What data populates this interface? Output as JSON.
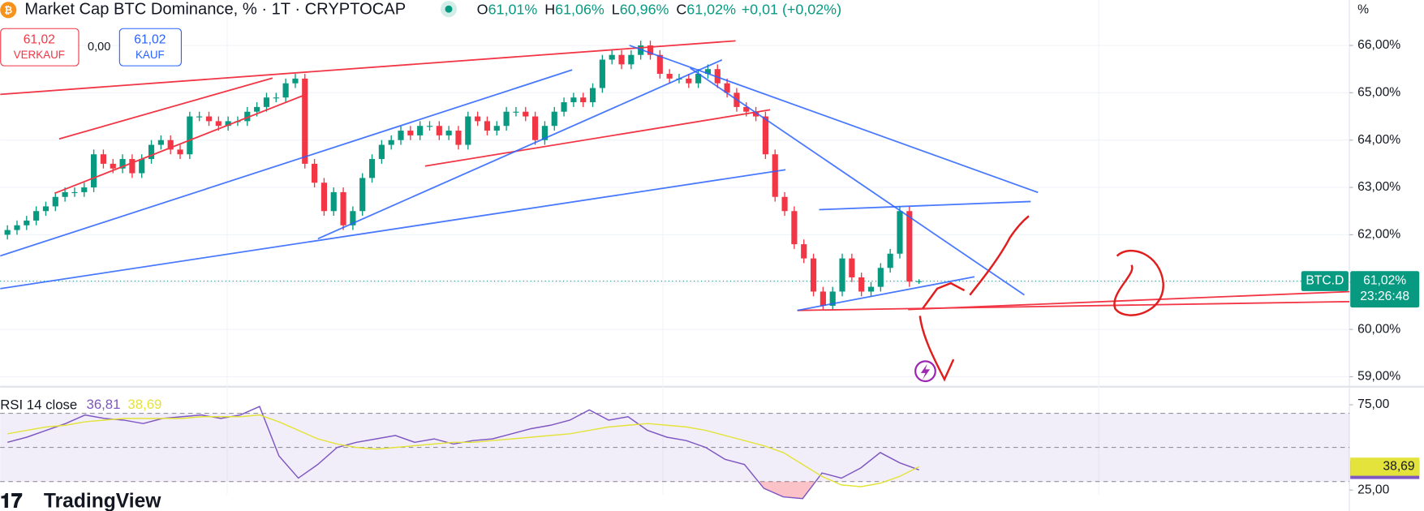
{
  "header": {
    "title": "Market Cap BTC Dominance, % · 1T · CRYPTOCAP",
    "ohlc": [
      {
        "key": "O",
        "text": "61,01%"
      },
      {
        "key": "H",
        "text": "61,06%"
      },
      {
        "key": "L",
        "text": "60,96%"
      },
      {
        "key": "C",
        "text": "61,02%"
      }
    ],
    "change": "+0,01 (+0,02%)",
    "sell": {
      "price": "61,02",
      "label": "VERKAUF"
    },
    "spread": "0,00",
    "buy": {
      "price": "61,02",
      "label": "KAUF"
    },
    "unit": "%",
    "symbol": "BTC.D",
    "countdown": "23:26:48",
    "logo": "TradingView"
  },
  "chart_data": [
    {
      "type": "candlestick",
      "up_color": "#089981",
      "down_color": "#f23645",
      "open": [
        62.0,
        62.1,
        62.2,
        62.3,
        62.5,
        62.6,
        62.8,
        62.9,
        62.9,
        63.0,
        63.7,
        63.5,
        63.4,
        63.6,
        63.3,
        63.6,
        63.9,
        64.0,
        63.8,
        63.7,
        64.5,
        64.5,
        64.4,
        64.3,
        64.4,
        64.4,
        64.6,
        64.7,
        64.9,
        64.9,
        65.2,
        65.3,
        63.5,
        63.1,
        62.5,
        62.9,
        62.2,
        62.5,
        63.2,
        63.6,
        63.9,
        64.0,
        64.2,
        64.1,
        64.3,
        64.3,
        64.1,
        64.2,
        63.9,
        64.5,
        64.4,
        64.2,
        64.3,
        64.6,
        64.6,
        64.5,
        64.0,
        64.3,
        64.6,
        64.8,
        64.9,
        64.8,
        65.1,
        65.7,
        65.8,
        65.6,
        65.8,
        66.0,
        65.8,
        65.4,
        65.3,
        65.3,
        65.2,
        65.4,
        65.5,
        65.2,
        65.0,
        64.7,
        64.6,
        64.5,
        63.7,
        62.8,
        62.5,
        61.8,
        61.5,
        60.8,
        60.5,
        60.8,
        61.5,
        61.1,
        60.8,
        60.9,
        61.3,
        61.6,
        62.5,
        61.01
      ],
      "high": [
        62.2,
        62.3,
        62.4,
        62.6,
        62.7,
        62.9,
        63.0,
        63.0,
        63.1,
        63.8,
        63.8,
        63.6,
        63.7,
        63.7,
        63.7,
        64.0,
        64.1,
        64.1,
        63.9,
        64.6,
        64.6,
        64.6,
        64.5,
        64.5,
        64.5,
        64.7,
        64.8,
        65.0,
        65.0,
        65.3,
        65.4,
        65.4,
        63.6,
        63.2,
        63.0,
        63.0,
        62.6,
        63.3,
        63.7,
        64.0,
        64.1,
        64.3,
        64.3,
        64.4,
        64.4,
        64.4,
        64.3,
        64.3,
        64.6,
        64.6,
        64.5,
        64.4,
        64.7,
        64.7,
        64.7,
        64.6,
        64.4,
        64.7,
        64.9,
        65.0,
        65.0,
        65.2,
        65.8,
        65.9,
        65.9,
        65.9,
        66.1,
        66.1,
        65.9,
        65.5,
        65.4,
        65.4,
        65.5,
        65.6,
        65.6,
        65.3,
        65.1,
        64.8,
        64.7,
        64.6,
        63.8,
        62.9,
        62.6,
        61.9,
        61.6,
        60.9,
        60.9,
        61.6,
        61.6,
        61.2,
        61.0,
        61.4,
        61.7,
        62.6,
        62.6,
        61.06
      ],
      "low": [
        61.9,
        62.0,
        62.1,
        62.2,
        62.4,
        62.5,
        62.7,
        62.8,
        62.8,
        62.9,
        63.4,
        63.3,
        63.3,
        63.2,
        63.2,
        63.5,
        63.8,
        63.7,
        63.6,
        63.6,
        64.4,
        64.3,
        64.2,
        64.2,
        64.3,
        64.3,
        64.5,
        64.6,
        64.8,
        64.8,
        65.1,
        63.4,
        63.0,
        62.4,
        62.4,
        62.1,
        62.1,
        62.4,
        63.1,
        63.5,
        63.8,
        63.9,
        64.0,
        64.0,
        64.2,
        64.0,
        64.0,
        63.8,
        63.8,
        64.3,
        64.1,
        64.1,
        64.2,
        64.5,
        64.4,
        63.9,
        63.9,
        64.2,
        64.5,
        64.7,
        64.7,
        64.7,
        65.0,
        65.6,
        65.5,
        65.5,
        65.7,
        65.7,
        65.3,
        65.2,
        65.2,
        65.1,
        65.1,
        65.3,
        65.1,
        64.9,
        64.6,
        64.5,
        64.4,
        63.6,
        62.7,
        62.4,
        61.7,
        61.4,
        60.7,
        60.4,
        60.4,
        60.7,
        61.0,
        60.7,
        60.7,
        60.8,
        61.2,
        61.5,
        60.9,
        60.96
      ],
      "close": [
        62.1,
        62.2,
        62.3,
        62.5,
        62.6,
        62.8,
        62.9,
        62.9,
        63.0,
        63.7,
        63.5,
        63.4,
        63.6,
        63.3,
        63.6,
        63.9,
        64.0,
        63.8,
        63.7,
        64.5,
        64.5,
        64.4,
        64.3,
        64.4,
        64.4,
        64.6,
        64.7,
        64.9,
        64.9,
        65.2,
        65.3,
        63.5,
        63.1,
        62.5,
        62.9,
        62.2,
        62.5,
        63.2,
        63.6,
        63.9,
        64.0,
        64.2,
        64.1,
        64.3,
        64.3,
        64.1,
        64.2,
        63.9,
        64.5,
        64.4,
        64.2,
        64.3,
        64.6,
        64.6,
        64.5,
        64.0,
        64.3,
        64.6,
        64.8,
        64.9,
        64.8,
        65.1,
        65.7,
        65.8,
        65.6,
        65.8,
        66.0,
        65.8,
        65.4,
        65.3,
        65.3,
        65.2,
        65.4,
        65.5,
        65.2,
        65.0,
        64.7,
        64.6,
        64.5,
        63.7,
        62.8,
        62.5,
        61.8,
        61.5,
        60.8,
        60.5,
        60.8,
        61.5,
        61.1,
        60.8,
        60.9,
        61.3,
        61.6,
        62.5,
        61.01,
        61.02
      ],
      "last_price": {
        "value": 61.02,
        "label": "61,02%"
      },
      "ylim": [
        58.81,
        66.96
      ],
      "yticks": [
        {
          "value": 66,
          "label": "66,00%"
        },
        {
          "value": 65,
          "label": "65,00%"
        },
        {
          "value": 64,
          "label": "64,00%"
        },
        {
          "value": 63,
          "label": "63,00%"
        },
        {
          "value": 62,
          "label": "62,00%"
        },
        {
          "value": 61,
          "label": "61,00%"
        },
        {
          "value": 60,
          "label": "60,00%"
        },
        {
          "value": 59,
          "label": "59,00%"
        }
      ],
      "grid": true
    },
    {
      "type": "line",
      "title": "RSI 14 close",
      "series": [
        {
          "color": "#7e57c2",
          "values": [
            53,
            56,
            60,
            64,
            69,
            67,
            66,
            64,
            67,
            68,
            69,
            67,
            69,
            74,
            45,
            32,
            40,
            50,
            53,
            55,
            57,
            53,
            55,
            52,
            54,
            55,
            58,
            61,
            63,
            66,
            72,
            66,
            68,
            60,
            56,
            54,
            50,
            43,
            40,
            26,
            21,
            20,
            35,
            32,
            38,
            47,
            41,
            36.81
          ],
          "last": {
            "value": 36.81,
            "label": "36,81"
          }
        },
        {
          "color": "#e3e33b",
          "values": [
            58,
            60,
            62,
            63,
            65,
            66,
            67,
            67,
            67,
            67,
            68,
            68,
            68,
            69,
            65,
            60,
            55,
            52,
            50,
            49,
            50,
            51,
            52,
            53,
            53,
            54,
            55,
            56,
            57,
            58,
            60,
            62,
            63,
            64,
            63,
            62,
            60,
            57,
            54,
            51,
            47,
            40,
            33,
            28,
            27,
            29,
            33,
            38.69
          ],
          "last": {
            "value": 38.69,
            "label": "38,69"
          }
        }
      ],
      "levels": [
        70,
        50,
        30
      ],
      "ylim": [
        22.3,
        83.5
      ],
      "yticks": [
        {
          "value": 75,
          "label": "75,00"
        },
        {
          "value": 25,
          "label": "25,00"
        }
      ]
    }
  ]
}
